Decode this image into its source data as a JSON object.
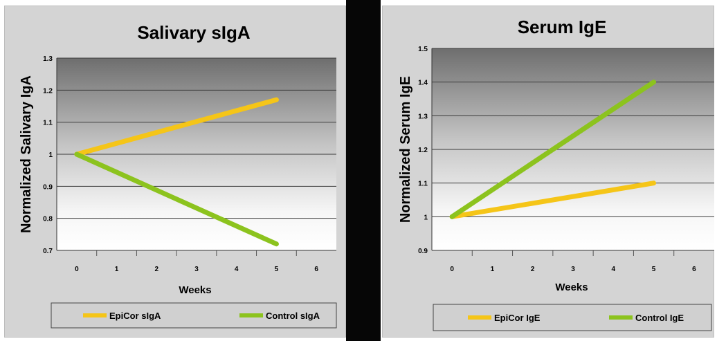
{
  "chart_data": [
    {
      "type": "line",
      "title": "Salivary sIgA",
      "xlabel": "Weeks",
      "ylabel": "Normalized Salivary IgA",
      "x_ticks": [
        "0",
        "1",
        "2",
        "3",
        "4",
        "5",
        "6"
      ],
      "y_ticks": [
        "0.7",
        "0.8",
        "0.9",
        "1",
        "1.1",
        "1.2",
        "1.3"
      ],
      "xlim": [
        0,
        6
      ],
      "ylim": [
        0.7,
        1.3
      ],
      "grid": true,
      "legend_position": "bottom",
      "series": [
        {
          "name": "EpiCor sIgA",
          "color": "#f5c518",
          "x": [
            0,
            5
          ],
          "y": [
            1.0,
            1.17
          ]
        },
        {
          "name": "Control sIgA",
          "color": "#8cc31e",
          "x": [
            0,
            5
          ],
          "y": [
            1.0,
            0.72
          ]
        }
      ]
    },
    {
      "type": "line",
      "title": "Serum IgE",
      "xlabel": "Weeks",
      "ylabel": "Normalized Serum IgE",
      "x_ticks": [
        "0",
        "1",
        "2",
        "3",
        "4",
        "5",
        "6"
      ],
      "y_ticks": [
        "0.9",
        "1",
        "1.1",
        "1.2",
        "1.3",
        "1.4",
        "1.5"
      ],
      "xlim": [
        0,
        6
      ],
      "ylim": [
        0.9,
        1.5
      ],
      "grid": true,
      "legend_position": "bottom",
      "series": [
        {
          "name": "EpiCor IgE",
          "color": "#f5c518",
          "x": [
            0,
            5
          ],
          "y": [
            1.0,
            1.1
          ]
        },
        {
          "name": "Control IgE",
          "color": "#8cc31e",
          "x": [
            0,
            5
          ],
          "y": [
            1.0,
            1.4
          ]
        }
      ]
    }
  ]
}
